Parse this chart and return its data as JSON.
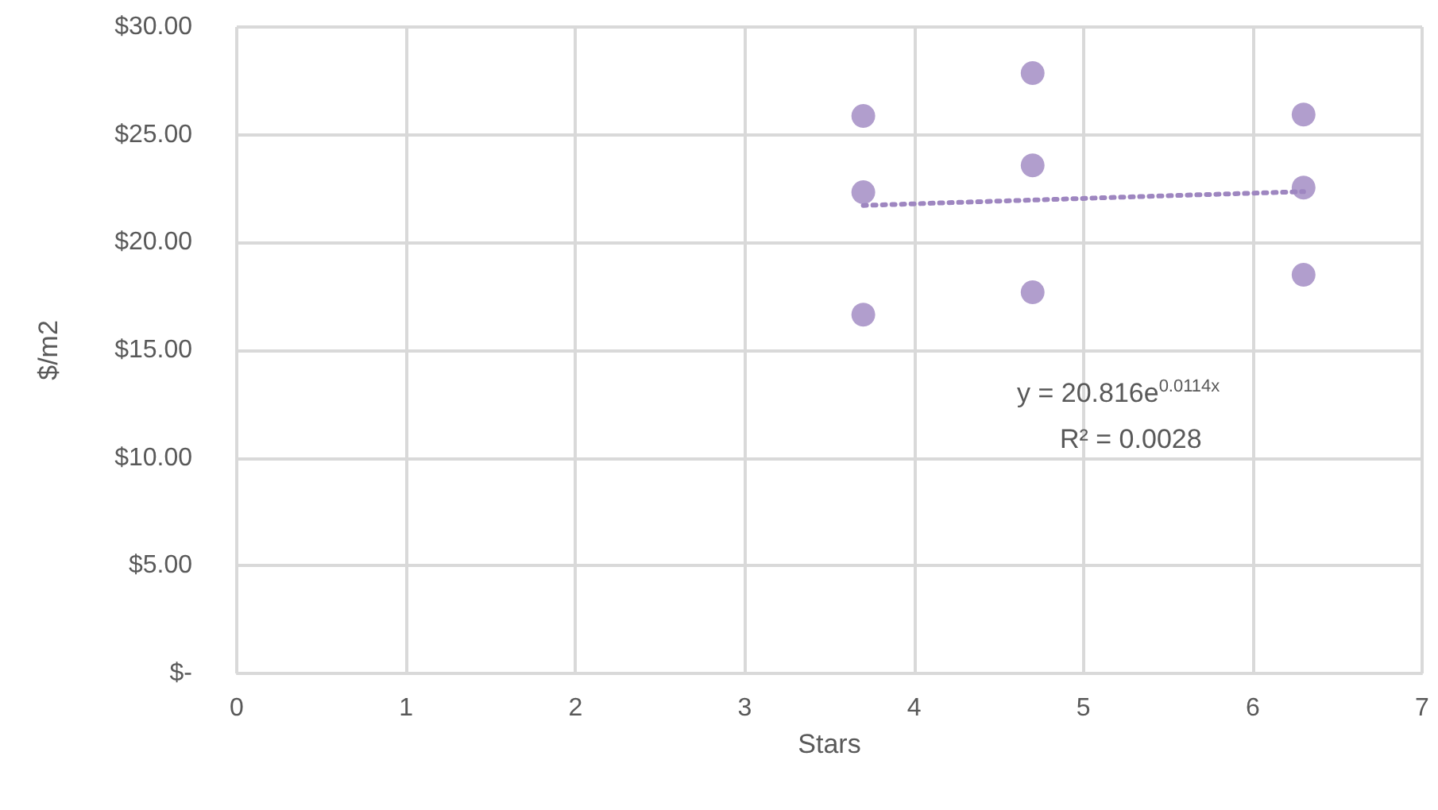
{
  "chart_data": {
    "type": "scatter",
    "xlabel": "Stars",
    "ylabel": "$/m2",
    "series": [
      {
        "color": "#9e86c0",
        "marker": "circle",
        "x": [
          3.7,
          3.7,
          3.7,
          4.7,
          4.7,
          4.7,
          6.3,
          6.3,
          6.3
        ],
        "values": [
          25.87,
          22.33,
          16.65,
          27.86,
          23.58,
          17.69,
          25.94,
          22.55,
          18.5
        ]
      },
      {
        "type": "line",
        "color": "#9e86c0",
        "line_style": "dotted",
        "marker": "none",
        "x": [
          3.7,
          4.5,
          5.5,
          6.3
        ],
        "values": [
          21.72,
          21.92,
          22.17,
          22.36
        ]
      }
    ],
    "xlim": [
      0,
      7
    ],
    "xticks": [
      0,
      1,
      2,
      3,
      4,
      5,
      6,
      7
    ],
    "ylim": [
      0,
      30
    ],
    "yticks": [
      {
        "value": 0,
        "label": "$-"
      },
      {
        "value": 5,
        "label": "$5.00"
      },
      {
        "value": 10,
        "label": "$10.00"
      },
      {
        "value": 15,
        "label": "$15.00"
      },
      {
        "value": 20,
        "label": "$20.00"
      },
      {
        "value": 25,
        "label": "$25.00"
      },
      {
        "value": 30,
        "label": "$30.00"
      }
    ],
    "grid": true,
    "annotations": [
      "y = 20.816e$^{0.0114x}$",
      "R² = 0.0028"
    ]
  }
}
